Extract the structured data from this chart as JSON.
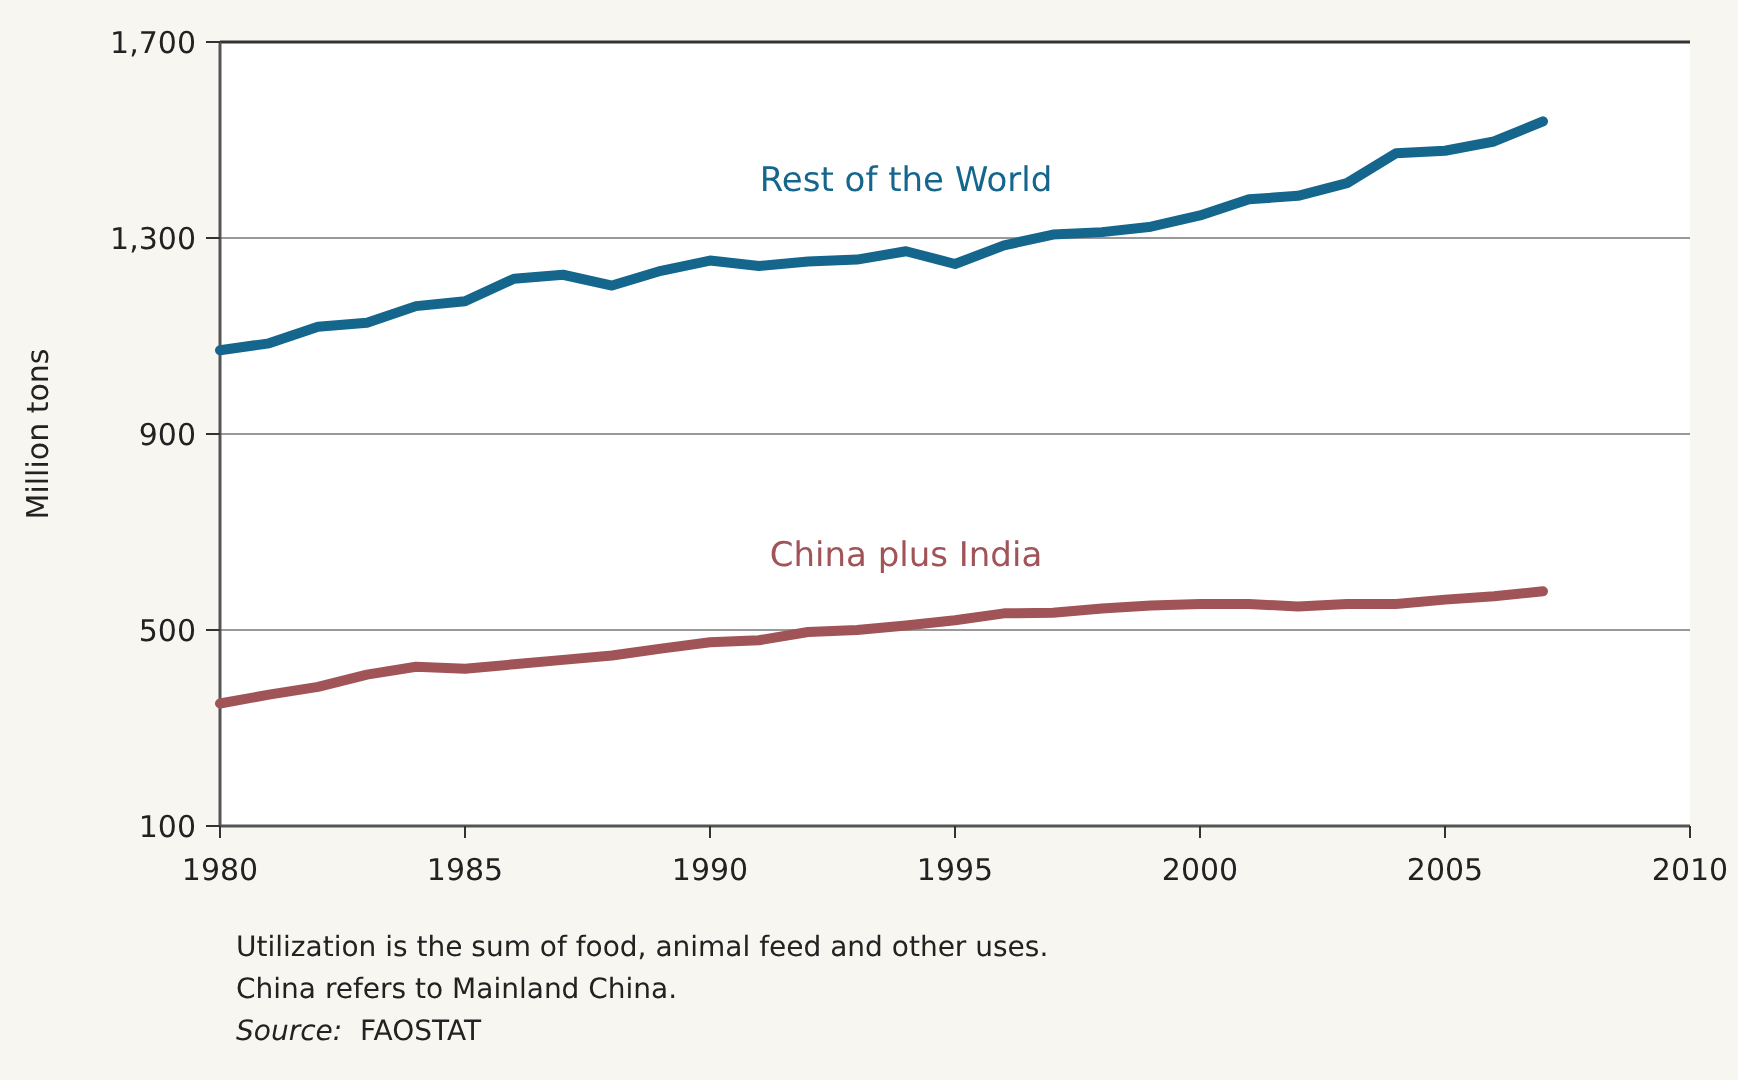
{
  "chart_data": {
    "type": "line",
    "ylabel": "Million tons",
    "x": [
      1980,
      1981,
      1982,
      1983,
      1984,
      1985,
      1986,
      1987,
      1988,
      1989,
      1990,
      1991,
      1992,
      1993,
      1994,
      1995,
      1996,
      1997,
      1998,
      1999,
      2000,
      2001,
      2002,
      2003,
      2004,
      2005,
      2006,
      2007
    ],
    "series": [
      {
        "name": "Rest of the World",
        "color": "#15668c",
        "values": [
          1071,
          1085,
          1119,
          1127,
          1161,
          1171,
          1217,
          1225,
          1203,
          1233,
          1254,
          1243,
          1252,
          1256,
          1273,
          1247,
          1285,
          1307,
          1312,
          1323,
          1346,
          1379,
          1386,
          1412,
          1473,
          1478,
          1497,
          1538
        ]
      },
      {
        "name": "China plus India",
        "color": "#a05458",
        "values": [
          350,
          368,
          384,
          409,
          425,
          421,
          430,
          439,
          448,
          462,
          475,
          479,
          496,
          500,
          509,
          520,
          534,
          535,
          544,
          550,
          553,
          553,
          548,
          553,
          553,
          562,
          569,
          579
        ]
      }
    ],
    "xlim": [
      1980,
      2010
    ],
    "xticks": [
      1980,
      1985,
      1990,
      1995,
      2000,
      2005,
      2010
    ],
    "ylim": [
      100,
      1700
    ],
    "yticks": [
      100,
      {
        "value": 500,
        "label": "500"
      },
      {
        "value": 900,
        "label": "900"
      },
      {
        "value": 1300,
        "label": "1,300"
      },
      {
        "value": 1700,
        "label": "1,700"
      }
    ],
    "grid": "y",
    "marker": "none",
    "line_style": "solid",
    "annotations": [
      "Utilization is the sum of food, animal feed and other uses.",
      "China refers to Mainland China.",
      "Source:  FAOSTAT"
    ]
  }
}
